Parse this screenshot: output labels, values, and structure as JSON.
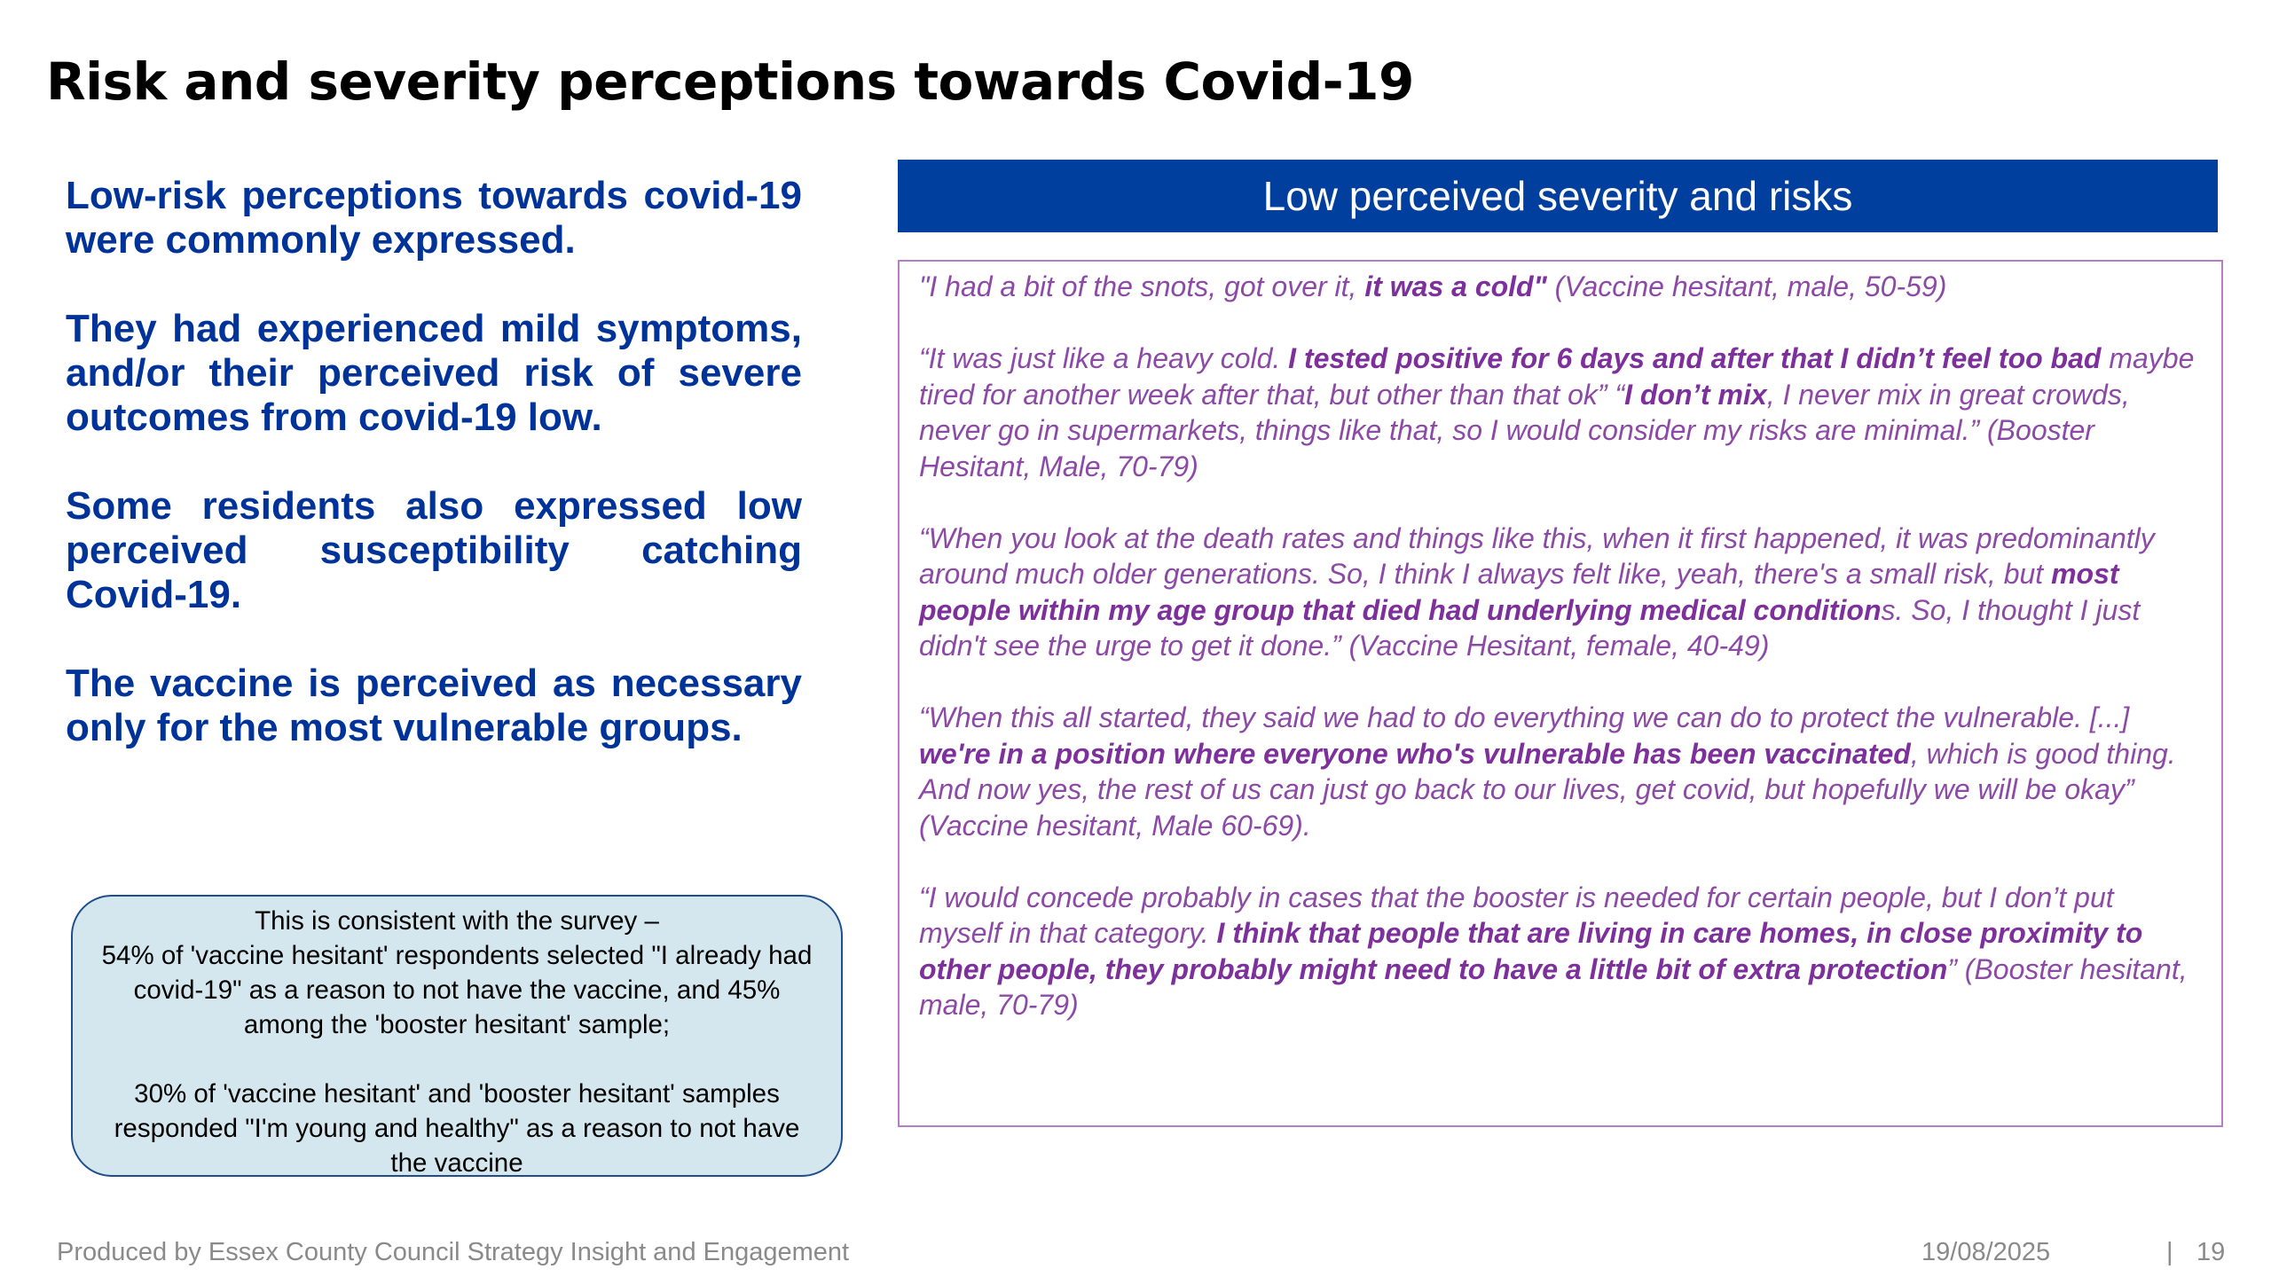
{
  "title": "Risk and severity perceptions towards Covid-19",
  "left_points": [
    "Low-risk perceptions towards covid-19 were commonly expressed.",
    "They had experienced mild symptoms, and/or their perceived risk of severe outcomes from covid-19 low.",
    "Some residents also expressed low perceived susceptibility catching Covid-19.",
    "The vaccine is perceived as necessary only for the most vulnerable groups."
  ],
  "survey_box": {
    "line1": "This is consistent with the survey –",
    "line2": "54% of 'vaccine hesitant' respondents selected \"I already had covid-19\" as a reason to not have the vaccine, and 45% among the 'booster hesitant' sample;",
    "line3": "30% of 'vaccine hesitant' and 'booster hesitant' samples responded \"I'm young and healthy\" as a reason to not have the vaccine"
  },
  "panel": {
    "header": "Low perceived severity and risks",
    "quotes": [
      {
        "p1": "\"I had a bit of the snots, got over it, ",
        "b1": "it was a cold\"",
        "p2": " (Vaccine hesitant, male, 50-59)"
      },
      {
        "p1": "“It was just like a heavy cold. ",
        "b1": "I tested positive for 6 days and after that I didn’t feel too bad",
        "p2": " maybe tired for another week after that, but other than that ok”  “",
        "b2": "I don’t mix",
        "p3": ", I never mix in great crowds, never go in supermarkets, things like that, so I would consider my risks are minimal.” (Booster Hesitant, Male, 70-79)"
      },
      {
        "p1": "“When you look at the death rates and things like this, when it first happened, it was predominantly around much older generations. So, I think I always felt like, yeah, there's a small risk, but ",
        "b1": "most people within my age group that died had underlying medical condition",
        "p2": "s. So, I thought I just didn't see the urge to get it done.” (Vaccine Hesitant, female, 40-49)"
      },
      {
        "p1": "“When this all started, they said we had to do everything we can do to protect the vulnerable. [...] ",
        "b1": "we're in a position where everyone who's vulnerable has been vaccinated",
        "p2": ", which is good thing. And now yes, the rest of us can just go back to our lives, get covid, but hopefully we will be okay” (Vaccine hesitant, Male 60-69)."
      },
      {
        "p1": " “I would concede probably in cases that the booster is needed for certain people, but I don’t put myself in that category. ",
        "b1": "I think that people that are living in care homes, in close proximity to other people, they probably might need to have a little bit of extra protection",
        "p2": "” (Booster hesitant, male, 70-79)"
      }
    ]
  },
  "footer": {
    "source": "Produced by Essex County Council Strategy Insight and Engagement",
    "date": "19/08/2025",
    "separator": "|",
    "page_number": "19"
  },
  "colors": {
    "title": "#000000",
    "left_text": "#003399",
    "panel_header_bg": "#003f9e",
    "quote_text": "#8c4aa6",
    "quote_border": "#b57ec8",
    "survey_box_bg": "#d5e7ee",
    "footer_text": "#8a8a8a"
  }
}
